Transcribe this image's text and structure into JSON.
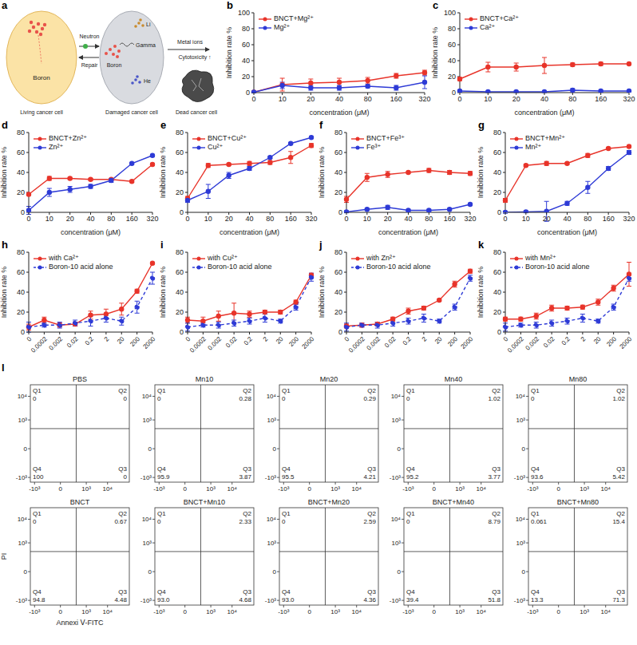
{
  "diagram": {
    "panel": "a",
    "cells": [
      "Living cancer cell",
      "Damaged cancer cell",
      "Dead cancer cell"
    ],
    "boron": "Boron",
    "neutron": "Neutron",
    "repair": "Repair",
    "products": [
      "Li",
      "Gamma",
      "He"
    ],
    "metal_ions": "Metal ions",
    "cytotoxicity": "Cytotoxicity ↑"
  },
  "chart_data": [
    {
      "panel": "b",
      "type": "line",
      "x_label": "concentration (μM)",
      "y_label": "Inhibition rate %",
      "categories": [
        "0",
        "10",
        "20",
        "40",
        "80",
        "160",
        "320"
      ],
      "ylim": [
        0,
        100
      ],
      "yticks": [
        0,
        20,
        40,
        60,
        80,
        100
      ],
      "legend": "upper left",
      "series": [
        {
          "name": "BNCT+Mg²⁺",
          "color": "#e8342a",
          "marker": "circle",
          "line_style": "solid",
          "values": [
            0.5,
            10,
            12,
            13,
            15,
            21,
            25
          ],
          "errors": [
            1,
            8,
            5,
            5,
            4,
            3,
            3
          ]
        },
        {
          "name": "Mg²⁺",
          "color": "#2e3bd6",
          "marker": "circle",
          "line_style": "solid",
          "values": [
            0.5,
            9,
            6,
            6,
            8,
            6,
            13
          ],
          "errors": [
            1,
            4,
            3,
            3,
            2,
            3,
            8
          ]
        }
      ]
    },
    {
      "panel": "c",
      "type": "line",
      "x_label": "concentration (μM)",
      "y_label": "Inhibition rate %",
      "categories": [
        "0",
        "10",
        "20",
        "40",
        "80",
        "160",
        "320"
      ],
      "ylim": [
        0,
        100
      ],
      "yticks": [
        0,
        20,
        40,
        60,
        80,
        100
      ],
      "legend": "upper left",
      "series": [
        {
          "name": "BNCT+Ca²⁺",
          "color": "#e8342a",
          "marker": "circle",
          "line_style": "solid",
          "values": [
            17,
            32,
            32,
            34,
            35,
            36,
            36
          ],
          "errors": [
            2,
            6,
            5,
            10,
            2,
            2,
            1
          ]
        },
        {
          "name": "Ca²⁺",
          "color": "#2e3bd6",
          "marker": "circle",
          "line_style": "solid",
          "values": [
            2,
            1,
            1,
            1,
            3,
            2,
            2
          ],
          "errors": [
            1,
            1,
            1,
            1,
            2,
            1,
            1
          ]
        }
      ]
    },
    {
      "panel": "d",
      "type": "line",
      "x_label": "concentration (μM)",
      "y_label": "Inhibition rate %",
      "categories": [
        "0",
        "10",
        "20",
        "40",
        "80",
        "160",
        "320"
      ],
      "ylim": [
        0,
        80
      ],
      "yticks": [
        0,
        20,
        40,
        60,
        80
      ],
      "legend": "upper left",
      "series": [
        {
          "name": "BNCT+Zn²⁺",
          "color": "#e8342a",
          "marker": "circle",
          "line_style": "solid",
          "values": [
            18,
            34,
            34,
            33,
            33,
            31,
            48
          ],
          "errors": [
            1,
            2,
            1,
            1,
            1,
            1,
            1
          ]
        },
        {
          "name": "Zn²⁺",
          "color": "#2e3bd6",
          "marker": "circle",
          "line_style": "solid",
          "values": [
            2,
            20,
            23,
            26,
            32,
            49,
            57
          ],
          "errors": [
            4,
            4,
            3,
            2,
            2,
            1,
            1
          ]
        }
      ]
    },
    {
      "panel": "e",
      "type": "line",
      "x_label": "concentration (μM)",
      "y_label": "Inhibition rate %",
      "categories": [
        "0",
        "10",
        "20",
        "40",
        "80",
        "160",
        "320"
      ],
      "ylim": [
        0,
        80
      ],
      "yticks": [
        0,
        20,
        40,
        60,
        80
      ],
      "legend": "upper left",
      "series": [
        {
          "name": "BNCT+Cu²⁺",
          "color": "#e8342a",
          "marker": "circle",
          "line_style": "solid",
          "values": [
            14,
            47,
            48,
            49,
            50,
            55,
            67
          ],
          "errors": [
            2,
            2,
            1,
            2,
            2,
            6,
            2
          ]
        },
        {
          "name": "Cu²⁺",
          "color": "#2e3bd6",
          "marker": "circle",
          "line_style": "solid",
          "values": [
            12,
            21,
            37,
            44,
            55,
            69,
            75
          ],
          "errors": [
            2,
            7,
            3,
            2,
            1,
            1,
            1
          ]
        }
      ]
    },
    {
      "panel": "f",
      "type": "line",
      "x_label": "concentration (μM)",
      "y_label": "Inhibition rate %",
      "categories": [
        "0",
        "10",
        "20",
        "40",
        "80",
        "160",
        "320"
      ],
      "ylim": [
        0,
        80
      ],
      "yticks": [
        0,
        20,
        40,
        60,
        80
      ],
      "legend": "upper left",
      "series": [
        {
          "name": "BNCT+Fe³⁺",
          "color": "#e8342a",
          "marker": "circle",
          "line_style": "solid",
          "values": [
            13,
            35,
            38,
            40,
            42,
            40,
            39
          ],
          "errors": [
            3,
            4,
            3,
            1,
            2,
            2,
            2
          ]
        },
        {
          "name": "Fe³⁺",
          "color": "#2e3bd6",
          "marker": "circle",
          "line_style": "solid",
          "values": [
            0.5,
            3,
            5,
            2,
            2,
            3,
            8
          ],
          "errors": [
            1,
            1,
            2,
            1,
            1,
            1,
            1
          ]
        }
      ]
    },
    {
      "panel": "g",
      "type": "line",
      "x_label": "concentration (μM)",
      "y_label": "Inhibition rate %",
      "categories": [
        "0",
        "10",
        "20",
        "40",
        "80",
        "160",
        "320"
      ],
      "ylim": [
        0,
        80
      ],
      "yticks": [
        0,
        20,
        40,
        60,
        80
      ],
      "legend": "upper left",
      "series": [
        {
          "name": "BNCT+Mn²⁺",
          "color": "#e8342a",
          "marker": "circle",
          "line_style": "solid",
          "values": [
            12,
            47,
            49,
            49,
            57,
            64,
            66
          ],
          "errors": [
            2,
            1,
            2,
            1,
            2,
            1,
            1
          ]
        },
        {
          "name": "Mn²⁺",
          "color": "#2e3bd6",
          "marker": "circle",
          "line_style": "solid",
          "values": [
            0,
            0.5,
            1,
            9,
            25,
            44,
            60
          ],
          "errors": [
            1,
            1,
            10,
            2,
            6,
            2,
            2
          ]
        }
      ]
    },
    {
      "panel": "h",
      "type": "line",
      "y_label": "Inhibition rate %",
      "categories": [
        "0",
        "0.0002",
        "0.002",
        "0.02",
        "0.2",
        "2",
        "20",
        "200",
        "2000"
      ],
      "ylim": [
        0,
        80
      ],
      "yticks": [
        0,
        20,
        40,
        60,
        80
      ],
      "legend": "upper left",
      "series": [
        {
          "name": "with Ca²⁺",
          "color": "#e8342a",
          "marker": "circle",
          "line_style": "solid",
          "values": [
            5,
            12,
            7,
            8,
            17,
            18,
            23,
            41,
            69
          ],
          "errors": [
            3,
            3,
            2,
            2,
            4,
            5,
            6,
            2,
            1
          ]
        },
        {
          "name": "Boron-10 acid alone",
          "color": "#2e3bd6",
          "marker": "circle",
          "line_style": "dashed",
          "values": [
            5,
            7,
            7,
            9,
            11,
            14,
            11,
            25,
            54
          ],
          "errors": [
            5,
            2,
            3,
            3,
            5,
            4,
            4,
            6,
            6
          ]
        }
      ]
    },
    {
      "panel": "i",
      "type": "line",
      "y_label": "Inhibition rate %",
      "categories": [
        "0",
        "0.0002",
        "0.002",
        "0.02",
        "0.2",
        "2",
        "20",
        "200",
        "2000"
      ],
      "ylim": [
        0,
        80
      ],
      "yticks": [
        0,
        20,
        40,
        60,
        80
      ],
      "legend": "upper left",
      "series": [
        {
          "name": "with Cu²⁺",
          "color": "#e8342a",
          "marker": "circle",
          "line_style": "solid",
          "values": [
            12,
            11,
            16,
            19,
            18,
            20,
            20,
            30,
            57
          ],
          "errors": [
            3,
            4,
            5,
            10,
            3,
            2,
            2,
            2,
            2
          ]
        },
        {
          "name": "Boron-10 acid alone",
          "color": "#2e3bd6",
          "marker": "circle",
          "line_style": "dashed",
          "values": [
            5,
            7,
            7,
            9,
            11,
            14,
            11,
            25,
            55
          ],
          "errors": [
            4,
            2,
            3,
            3,
            3,
            4,
            2,
            3,
            4
          ]
        }
      ]
    },
    {
      "panel": "j",
      "type": "line",
      "y_label": "Inhibition rate %",
      "categories": [
        "0",
        "0.0002",
        "0.002",
        "0.02",
        "0.2",
        "2",
        "20",
        "200",
        "2000"
      ],
      "ylim": [
        0,
        80
      ],
      "yticks": [
        0,
        20,
        40,
        60,
        80
      ],
      "legend": "upper left",
      "series": [
        {
          "name": "with Zn²⁺",
          "color": "#e8342a",
          "marker": "circle",
          "line_style": "solid",
          "values": [
            6,
            7,
            8,
            13,
            21,
            24,
            32,
            48,
            61
          ],
          "errors": [
            2,
            2,
            2,
            2,
            3,
            2,
            1,
            3,
            2
          ]
        },
        {
          "name": "Boron-10 acid alone",
          "color": "#2e3bd6",
          "marker": "circle",
          "line_style": "dashed",
          "values": [
            5,
            7,
            7,
            9,
            11,
            14,
            11,
            25,
            54
          ],
          "errors": [
            4,
            2,
            3,
            3,
            3,
            4,
            2,
            3,
            3
          ]
        }
      ]
    },
    {
      "panel": "k",
      "type": "line",
      "y_label": "Inhibition rate %",
      "categories": [
        "0",
        "0.0002",
        "0.002",
        "0.02",
        "0.2",
        "2",
        "20",
        "200",
        "2000"
      ],
      "ylim": [
        0,
        80
      ],
      "yticks": [
        0,
        20,
        40,
        60,
        80
      ],
      "legend": "upper left",
      "series": [
        {
          "name": "with Mn²⁺",
          "color": "#e8342a",
          "marker": "circle",
          "line_style": "solid",
          "values": [
            13,
            13,
            16,
            24,
            24,
            25,
            30,
            44,
            58
          ],
          "errors": [
            2,
            2,
            3,
            3,
            2,
            2,
            3,
            3,
            12
          ]
        },
        {
          "name": "Boron-10 acid alone",
          "color": "#2e3bd6",
          "marker": "circle",
          "line_style": "dashed",
          "values": [
            5,
            7,
            7,
            9,
            11,
            14,
            11,
            25,
            54
          ],
          "errors": [
            4,
            2,
            3,
            3,
            3,
            4,
            2,
            3,
            3
          ]
        }
      ]
    },
    {
      "panel": "l",
      "type": "flow",
      "x_label": "Annexi Ⅴ-FITC",
      "y_label": "PI",
      "log": true,
      "xlim": [
        -1600,
        100000
      ],
      "ylim": [
        -1600,
        30000
      ],
      "xticks": [
        {
          "value": -1000,
          "label": "-10³"
        },
        0,
        {
          "value": 1000,
          "label": "10³"
        },
        {
          "value": 10000,
          "label": "10⁴"
        }
      ],
      "yticks": [
        {
          "value": -1000,
          "label": "-10³"
        },
        0,
        {
          "value": 1000,
          "label": "10³"
        },
        {
          "value": 10000,
          "label": "10⁴"
        }
      ],
      "gates": {
        "x": 300,
        "y": 400
      },
      "plots": [
        {
          "title": "PBS",
          "quadrants": [
            "Q1",
            "Q2",
            "Q3",
            "Q4"
          ],
          "values": [
            0,
            0,
            0,
            100
          ]
        },
        {
          "title": "Mn10",
          "quadrants": [
            "Q1",
            "Q2",
            "Q3",
            "Q4"
          ],
          "values": [
            0,
            0.28,
            3.87,
            95.9
          ]
        },
        {
          "title": "Mn20",
          "quadrants": [
            "Q1",
            "Q2",
            "Q3",
            "Q4"
          ],
          "values": [
            0,
            0.29,
            4.21,
            95.5
          ]
        },
        {
          "title": "Mn40",
          "quadrants": [
            "Q1",
            "Q2",
            "Q3",
            "Q4"
          ],
          "values": [
            0,
            1.02,
            3.77,
            95.2
          ]
        },
        {
          "title": "Mn80",
          "quadrants": [
            "Q1",
            "Q2",
            "Q3",
            "Q4"
          ],
          "values": [
            0,
            1.02,
            5.42,
            93.6
          ]
        },
        {
          "title": "BNCT",
          "quadrants": [
            "Q1",
            "Q2",
            "Q3",
            "Q4"
          ],
          "values": [
            0,
            0.67,
            4.48,
            94.8
          ]
        },
        {
          "title": "BNCT+Mn10",
          "quadrants": [
            "Q1",
            "Q2",
            "Q3",
            "Q4"
          ],
          "values": [
            0,
            2.33,
            4.68,
            93.0
          ],
          "value_labels": [
            "0",
            "2.33",
            "4.68",
            "93.0"
          ]
        },
        {
          "title": "BNCT+Mn20",
          "quadrants": [
            "Q1",
            "Q2",
            "Q3",
            "Q4"
          ],
          "values": [
            0,
            2.59,
            4.36,
            93.0
          ],
          "value_labels": [
            "0",
            "2.59",
            "4.36",
            "93.0"
          ]
        },
        {
          "title": "BNCT+Mn40",
          "quadrants": [
            "Q1",
            "Q2",
            "Q3",
            "Q4"
          ],
          "values": [
            0,
            8.79,
            51.8,
            39.4
          ]
        },
        {
          "title": "BNCT+Mn80",
          "quadrants": [
            "Q1",
            "Q2",
            "Q3",
            "Q4"
          ],
          "values": [
            0.061,
            15.4,
            71.3,
            13.3
          ]
        }
      ]
    }
  ]
}
